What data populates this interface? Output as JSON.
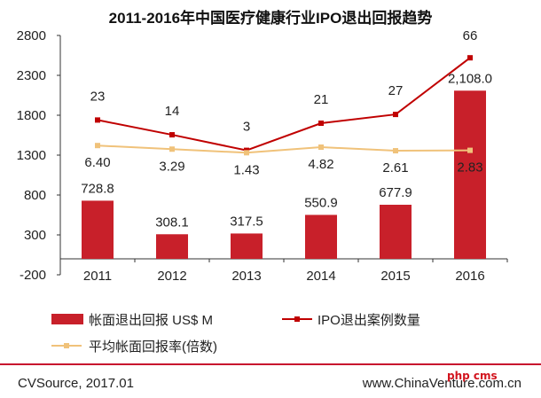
{
  "chart_data": {
    "type": "bar",
    "title": "2011-2016年中国医疗健康行业IPO退出回报趋势",
    "categories": [
      "2011",
      "2012",
      "2013",
      "2014",
      "2015",
      "2016"
    ],
    "ylim": [
      -200,
      2800
    ],
    "yticks": [
      "2800",
      "2300",
      "1800",
      "1300",
      "800",
      "300",
      "-200"
    ],
    "ytick_values": [
      2800,
      2300,
      1800,
      1300,
      800,
      300,
      -200
    ],
    "grid": false,
    "legend_position": "bottom",
    "series": [
      {
        "name": "帐面退出回报 US$ M",
        "type": "bar",
        "color": "#c8202a",
        "values": [
          728.8,
          308.1,
          317.5,
          550.9,
          677.9,
          2108.0
        ],
        "labels": [
          "728.8",
          "308.1",
          "317.5",
          "550.9",
          "677.9",
          "2,108.0"
        ]
      },
      {
        "name": "IPO退出案例数量",
        "type": "line",
        "color": "#c00000",
        "values": [
          23,
          14,
          3,
          21,
          27,
          66
        ],
        "plotted_at": [
          1740,
          1555,
          1360,
          1700,
          1810,
          2520
        ],
        "labels": [
          "23",
          "14",
          "3",
          "21",
          "27",
          "66"
        ]
      },
      {
        "name": "平均帐面回报率(倍数)",
        "type": "line",
        "color": "#f0c27a",
        "values": [
          6.4,
          3.29,
          1.43,
          4.82,
          2.61,
          2.83
        ],
        "plotted_at": [
          1420,
          1375,
          1330,
          1400,
          1355,
          1360
        ],
        "labels": [
          "6.40",
          "3.29",
          "1.43",
          "4.82",
          "2.61",
          "2.83"
        ]
      }
    ]
  },
  "footer": {
    "source": "CVSource, 2017.01",
    "website": "www.ChinaVenture.com.cn",
    "watermark": "php cms"
  }
}
